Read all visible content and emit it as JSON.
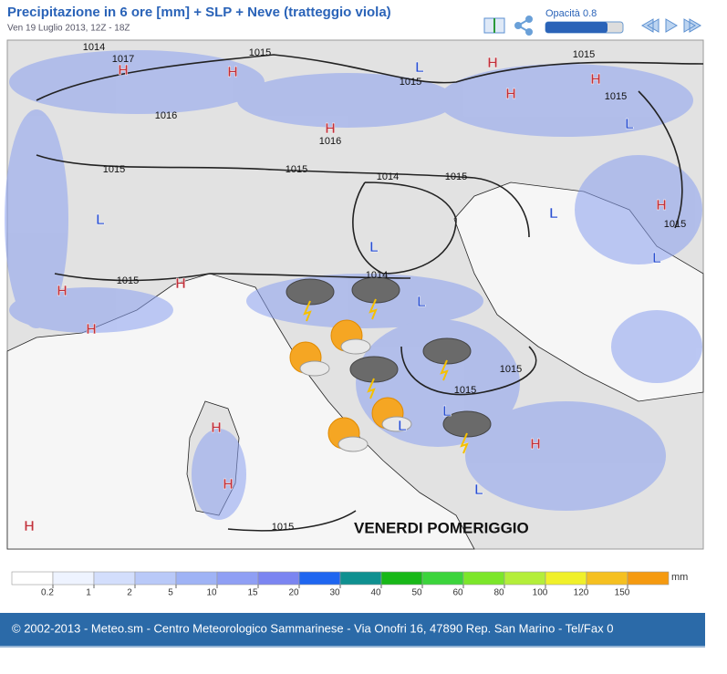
{
  "header": {
    "title": "Precipitazione in 6 ore [mm] + SLP + Neve (tratteggio viola)",
    "subtitle": "Ven 19 Luglio 2013, 12Z - 18Z",
    "opacity_label": "Opacità 0.8"
  },
  "map": {
    "labels": [
      "1014",
      "1017",
      "1015",
      "1015",
      "1016",
      "1016",
      "1015",
      "1015",
      "1014",
      "1015",
      "1015",
      "1015",
      "1015",
      "1015",
      "1014",
      "1015",
      "1015",
      "1015",
      "H",
      "H",
      "L",
      "H",
      "H",
      "H",
      "L",
      "H",
      "L",
      "L",
      "L",
      "H",
      "L",
      "H",
      "H",
      "H",
      "L",
      "H",
      "H",
      "H",
      "H",
      "L",
      "L",
      "L"
    ],
    "caption": "VENERDI POMERIGGIO"
  },
  "legend": {
    "colors": [
      "#ffffff",
      "#eef3ff",
      "#d3defc",
      "#b9c9f8",
      "#9fb3f5",
      "#8f9ff4",
      "#7b85f1",
      "#1f66f0",
      "#0f9090",
      "#18b818",
      "#3cd43c",
      "#7ce62a",
      "#b4ee3a",
      "#f0f02a",
      "#f5c020",
      "#f59a10"
    ],
    "ticks": [
      0.2,
      1,
      2,
      5,
      10,
      15,
      20,
      30,
      40,
      50,
      60,
      80,
      100,
      120,
      150
    ],
    "unit": "mm"
  },
  "footer": {
    "text": "© 2002-2013 - Meteo.sm - Centro Meteorologico Sammarinese - Via Onofri 16, 47890 Rep. San Marino - Tel/Fax 0"
  }
}
